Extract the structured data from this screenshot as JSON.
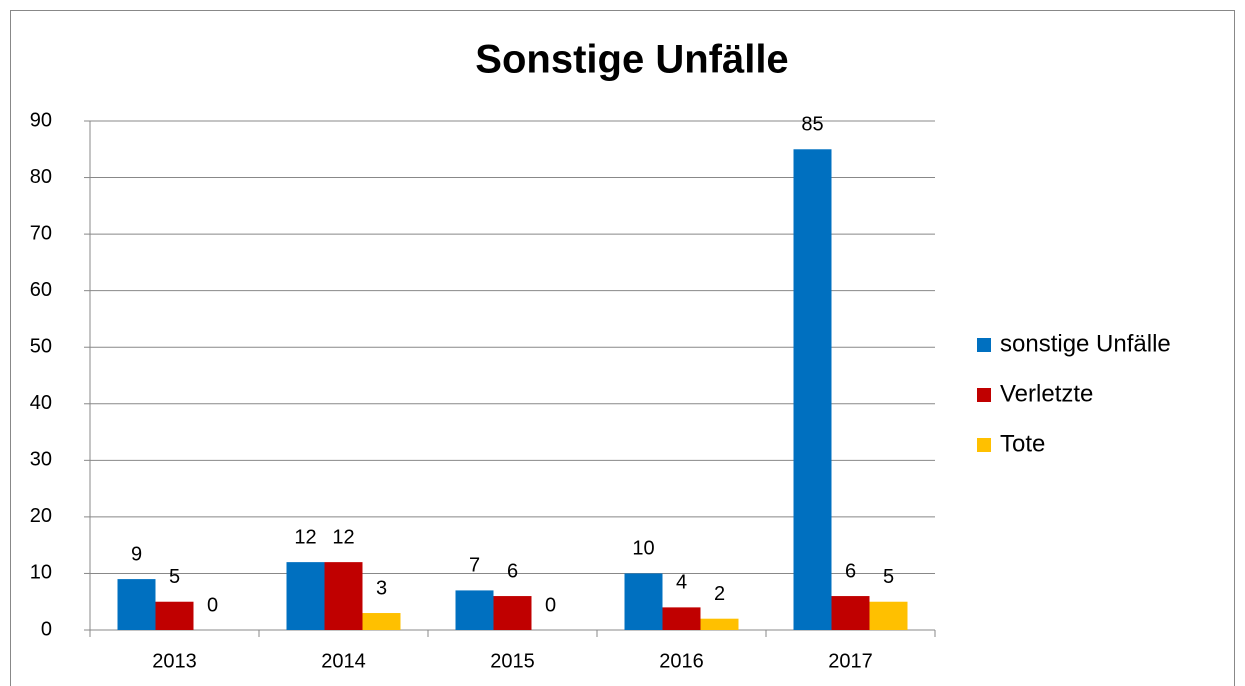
{
  "chart_data": {
    "type": "bar",
    "title": "Sonstige Unfälle",
    "categories": [
      "2013",
      "2014",
      "2015",
      "2016",
      "2017"
    ],
    "series": [
      {
        "name": "sonstige Unfälle",
        "color": "#0070c0",
        "values": [
          9,
          12,
          7,
          10,
          85
        ]
      },
      {
        "name": "Verletzte",
        "color": "#c00000",
        "values": [
          5,
          12,
          6,
          4,
          6
        ]
      },
      {
        "name": "Tote",
        "color": "#ffc000",
        "values": [
          0,
          3,
          0,
          2,
          5
        ]
      }
    ],
    "ylim": [
      0,
      90
    ],
    "yticks": [
      0,
      10,
      20,
      30,
      40,
      50,
      60,
      70,
      80,
      90
    ],
    "grid": true,
    "legend": "right"
  }
}
